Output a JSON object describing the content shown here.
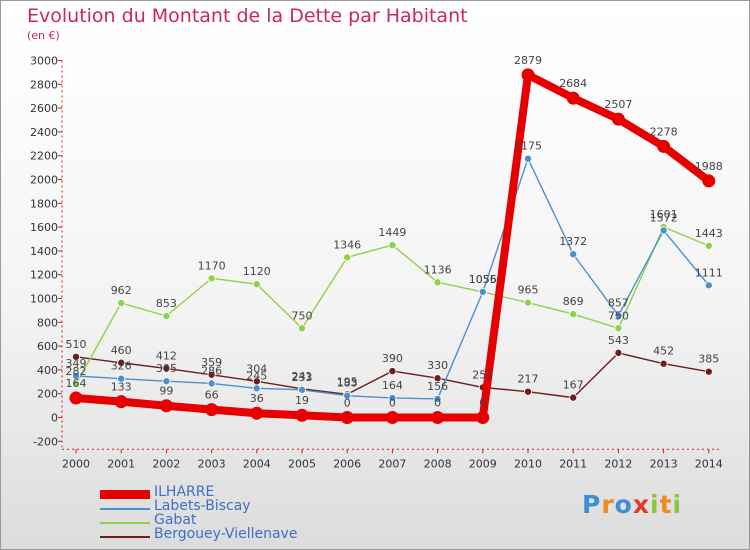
{
  "title": "Evolution du Montant de la Dette par Habitant",
  "subtitle": "(en €)",
  "logo": {
    "letters": [
      "P",
      "r",
      "o",
      "x",
      "i",
      "t",
      "i"
    ],
    "colors": [
      "#3a8fd6",
      "#f08a1c",
      "#3a8fd6",
      "#e23a2a",
      "#8cc63f",
      "#f08a1c",
      "#8cc63f"
    ]
  },
  "chart_data": {
    "type": "line",
    "xlabel": "",
    "ylabel": "",
    "categories": [
      "2000",
      "2001",
      "2002",
      "2003",
      "2004",
      "2005",
      "2006",
      "2007",
      "2008",
      "2009",
      "2010",
      "2011",
      "2012",
      "2013",
      "2014"
    ],
    "ylim": [
      -200,
      3000
    ],
    "yticks": [
      "-200",
      "0",
      "200",
      "400",
      "600",
      "800",
      "1000",
      "1200",
      "1400",
      "1600",
      "1800",
      "2000",
      "2200",
      "2400",
      "2600",
      "2800",
      "3000"
    ],
    "grid": false,
    "legend_position": "bottom-left",
    "series": [
      {
        "name": "ILHARRE",
        "color": "#e60000",
        "values": [
          164,
          133,
          99,
          66,
          36,
          19,
          0,
          0,
          0,
          0,
          2879,
          2684,
          2507,
          2278,
          1988
        ],
        "labels": [
          "164",
          "133",
          "99",
          "66",
          "36",
          "19",
          "0",
          "0",
          "0",
          "0",
          "2879",
          "2684",
          "2507",
          "2278",
          "1988"
        ]
      },
      {
        "name": "Labets-Biscay",
        "color": "#4a8fd0",
        "values": [
          349,
          326,
          305,
          286,
          245,
          233,
          183,
          164,
          156,
          1056,
          2175,
          1372,
          857,
          1572,
          1111
        ],
        "labels": [
          "349",
          "326",
          "305",
          "286",
          "245",
          "233",
          "183",
          "164",
          "156",
          "1056",
          "2175",
          "1372",
          "857",
          "1572",
          "1111"
        ]
      },
      {
        "name": "Gabat",
        "color": "#8ed14b",
        "values": [
          282,
          962,
          853,
          1170,
          1120,
          750,
          1346,
          1449,
          1136,
          1055,
          965,
          869,
          750,
          1601,
          1443
        ],
        "labels": [
          "282",
          "962",
          "853",
          "1170",
          "1120",
          "750",
          "1346",
          "1449",
          "1136",
          "1055",
          "965",
          "869",
          "750",
          "1601",
          "1443"
        ]
      },
      {
        "name": "Bergouey-Viellenave",
        "color": "#6e1c1c",
        "values": [
          510,
          460,
          412,
          359,
          304,
          241,
          195,
          390,
          330,
          253,
          217,
          167,
          543,
          452,
          385
        ],
        "labels": [
          "510",
          "460",
          "412",
          "359",
          "304",
          "241",
          "195",
          "390",
          "330",
          "253",
          "217",
          "167",
          "543",
          "452",
          "385"
        ]
      }
    ]
  }
}
